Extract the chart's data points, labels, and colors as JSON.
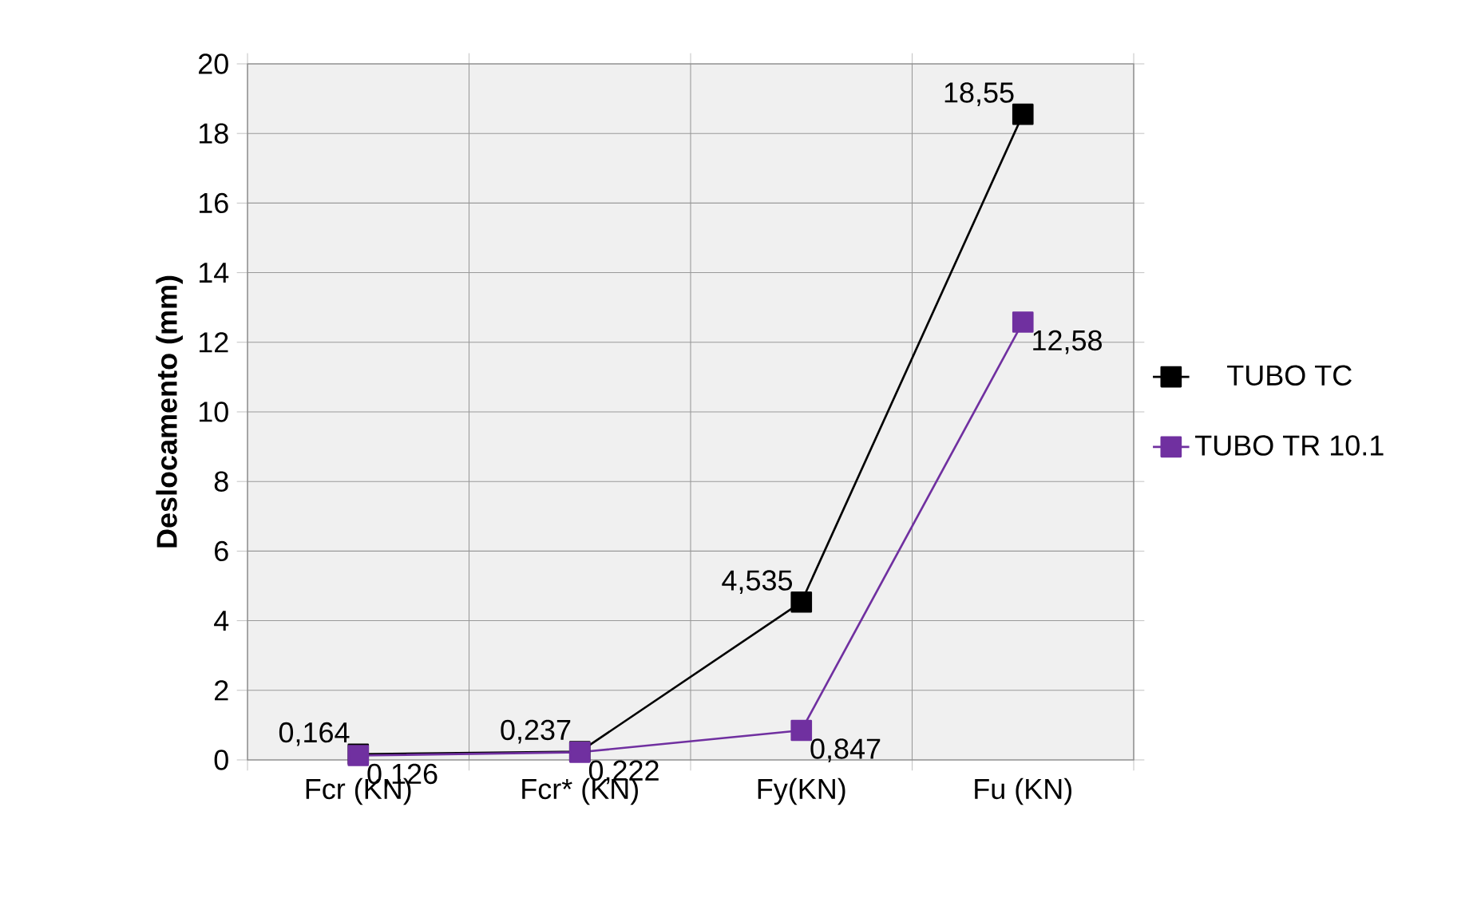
{
  "chart_data": {
    "type": "line",
    "ylabel": "Deslocamento (mm)",
    "categories": [
      "Fcr (KN)",
      "Fcr* (KN)",
      "Fy(KN)",
      "Fu (KN)"
    ],
    "series": [
      {
        "name": "TUBO TC",
        "color": "#000000",
        "values": [
          0.164,
          0.237,
          4.535,
          18.55
        ],
        "value_labels": [
          "0,164",
          "0,237",
          "4,535",
          "18,55"
        ]
      },
      {
        "name": "TUBO TR 10.1",
        "color": "#7030a0",
        "values": [
          0.126,
          0.222,
          0.847,
          12.58
        ],
        "value_labels": [
          "0,126",
          "0,222",
          "0,847",
          "12,58"
        ]
      }
    ],
    "ylim": [
      0,
      20
    ],
    "yticks": [
      0,
      2,
      4,
      6,
      8,
      10,
      12,
      14,
      16,
      18,
      20
    ],
    "grid": true,
    "legend": "right",
    "marker": "square",
    "line_style": "solid"
  }
}
